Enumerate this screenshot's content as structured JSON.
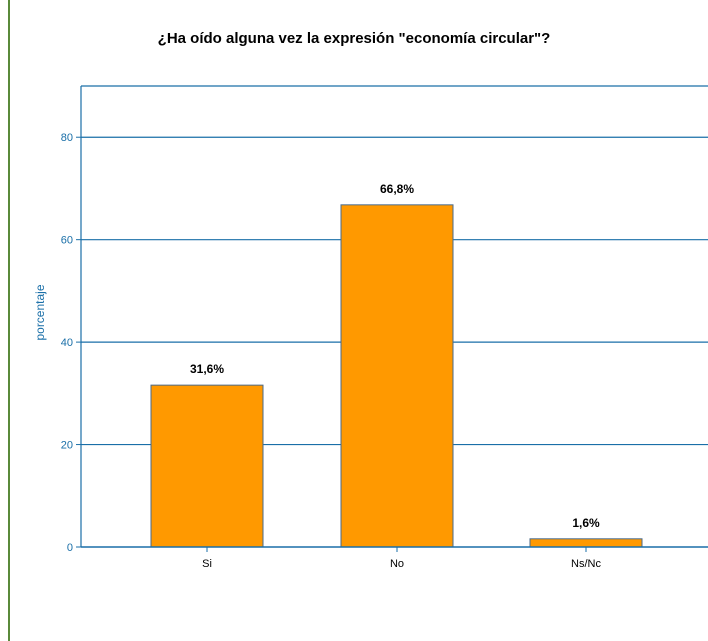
{
  "chart_data": {
    "type": "bar",
    "title": "¿Ha oído alguna vez la expresión \"economía circular\"?",
    "xlabel": "",
    "ylabel": "porcentaje",
    "categories": [
      "Si",
      "No",
      "Ns/Nc"
    ],
    "values": [
      31.6,
      66.8,
      1.6
    ],
    "data_labels": [
      "31,6%",
      "66,8%",
      "1,6%"
    ],
    "ylim": [
      0,
      90
    ],
    "yticks": [
      0,
      20,
      40,
      60,
      80
    ],
    "grid": true,
    "bar_color": "#ff9900",
    "bar_edge_color": "#4a6a8a",
    "axis_color": "#1a6fa8",
    "tick_label_color": "#1a6fa8"
  }
}
